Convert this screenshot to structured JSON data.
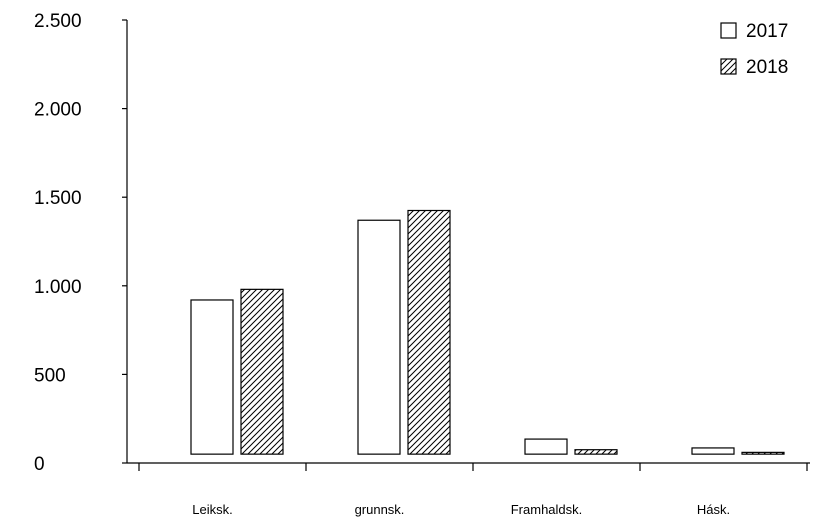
{
  "chart_data": {
    "type": "bar",
    "title": "",
    "xlabel": "",
    "ylabel": "",
    "categories": [
      "Leiksk.",
      "grunnsk.",
      "Framhaldsk.",
      "Hásk."
    ],
    "series": [
      {
        "name": "2017",
        "values": [
          870,
          1320,
          85,
          35
        ],
        "pattern": "none"
      },
      {
        "name": "2018",
        "values": [
          930,
          1375,
          25,
          10
        ],
        "pattern": "hatch"
      }
    ],
    "baseline": 50,
    "ylim": [
      0,
      2500
    ],
    "yticks": [
      0,
      500,
      1000,
      1500,
      2000,
      2500
    ],
    "ytick_labels": [
      "0",
      "500",
      "1.000",
      "1.500",
      "2.000",
      "2.500"
    ],
    "grid": false,
    "legend": "top-right",
    "colors": {
      "bar_stroke": "#000000",
      "bar_fill": "#ffffff",
      "hatch": "#000000"
    }
  }
}
